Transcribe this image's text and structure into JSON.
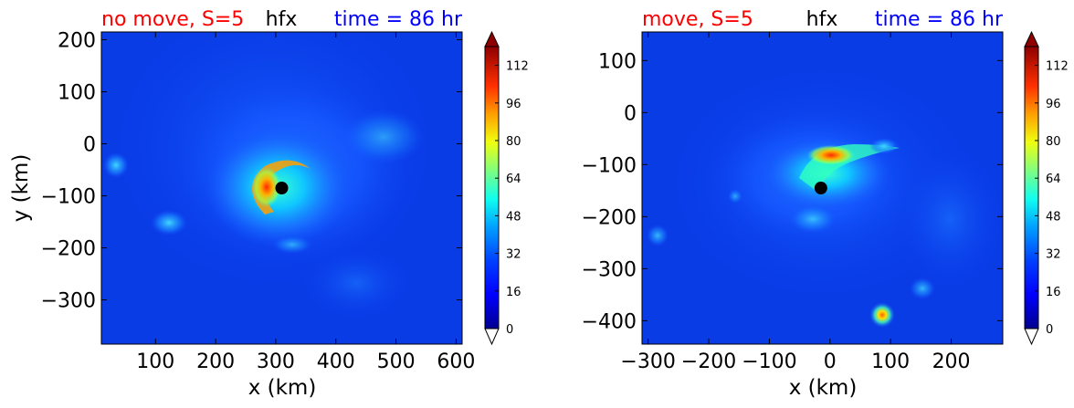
{
  "chart_data": [
    {
      "type": "heatmap",
      "title_left": "no move, S=5",
      "title_center": "hfx",
      "title_right": "time = 86 hr",
      "title_colors": {
        "left": "#ff0000",
        "center": "#000000",
        "right": "#0000ff"
      },
      "xlabel": "x (km)",
      "ylabel": "y (km)",
      "xlim": [
        10,
        610
      ],
      "ylim": [
        -385,
        215
      ],
      "xticks": [
        100,
        200,
        300,
        400,
        500,
        600
      ],
      "xtick_labels": [
        "100",
        "200",
        "300",
        "400",
        "500",
        "600"
      ],
      "yticks": [
        -300,
        -200,
        -100,
        0,
        100,
        200
      ],
      "ytick_labels": [
        "−300",
        "−200",
        "−100",
        "0",
        "100",
        "200"
      ],
      "storm_center": {
        "x": 310,
        "y": -85
      },
      "features": [
        {
          "kind": "eyewall",
          "x": 305,
          "y": -85,
          "r": 30,
          "peak": 112
        },
        {
          "kind": "core",
          "x": 310,
          "y": -90,
          "r": 90,
          "peak": 56
        },
        {
          "kind": "outer",
          "x": 320,
          "y": -60,
          "r": 170,
          "peak": 24
        }
      ]
    },
    {
      "type": "heatmap",
      "title_left": "move, S=5",
      "title_center": "hfx",
      "title_right": "time = 86 hr",
      "title_colors": {
        "left": "#ff0000",
        "center": "#000000",
        "right": "#0000ff"
      },
      "xlabel": "x (km)",
      "ylabel": "",
      "xlim": [
        -310,
        285
      ],
      "ylim": [
        -445,
        155
      ],
      "xticks": [
        -300,
        -200,
        -100,
        0,
        100,
        200
      ],
      "xtick_labels": [
        "−300",
        "−200",
        "−100",
        "0",
        "100",
        "200"
      ],
      "yticks": [
        -400,
        -300,
        -200,
        -100,
        0,
        100
      ],
      "ytick_labels": [
        "−400",
        "−300",
        "−200",
        "−100",
        "0",
        "100"
      ],
      "storm_center": {
        "x": -15,
        "y": -145
      },
      "features": [
        {
          "kind": "band",
          "x": -5,
          "y": -85,
          "r": 45,
          "peak": 104
        },
        {
          "kind": "core",
          "x": -10,
          "y": -130,
          "r": 100,
          "peak": 48
        },
        {
          "kind": "hotspot",
          "x": 85,
          "y": -385,
          "r": 15,
          "peak": 96
        }
      ]
    }
  ],
  "colorbar": {
    "ticks": [
      0,
      16,
      32,
      48,
      64,
      80,
      96,
      112
    ],
    "tick_labels": [
      "0",
      "16",
      "32",
      "48",
      "64",
      "80",
      "96",
      "112"
    ],
    "min": 0,
    "max": 120,
    "extend": "both",
    "colormap": "jet"
  }
}
